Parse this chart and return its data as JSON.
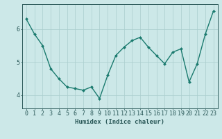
{
  "x": [
    0,
    1,
    2,
    3,
    4,
    5,
    6,
    7,
    8,
    9,
    10,
    11,
    12,
    13,
    14,
    15,
    16,
    17,
    18,
    19,
    20,
    21,
    22,
    23
  ],
  "y": [
    6.3,
    5.85,
    5.5,
    4.8,
    4.5,
    4.25,
    4.2,
    4.15,
    4.25,
    3.9,
    4.6,
    5.2,
    5.45,
    5.65,
    5.75,
    5.45,
    5.2,
    4.95,
    5.3,
    5.4,
    4.4,
    4.95,
    5.85,
    6.55
  ],
  "line_color": "#1a7a6e",
  "marker": "D",
  "marker_size": 2,
  "bg_color": "#cce8e8",
  "grid_color": "#aacece",
  "axis_color": "#2a5858",
  "xlabel": "Humidex (Indice chaleur)",
  "ylim": [
    3.6,
    6.75
  ],
  "xlim": [
    -0.5,
    23.5
  ],
  "yticks": [
    4,
    5,
    6
  ],
  "xticks": [
    0,
    1,
    2,
    3,
    4,
    5,
    6,
    7,
    8,
    9,
    10,
    11,
    12,
    13,
    14,
    15,
    16,
    17,
    18,
    19,
    20,
    21,
    22,
    23
  ],
  "xlabel_fontsize": 6.5,
  "tick_fontsize": 6,
  "line_width": 1.0
}
